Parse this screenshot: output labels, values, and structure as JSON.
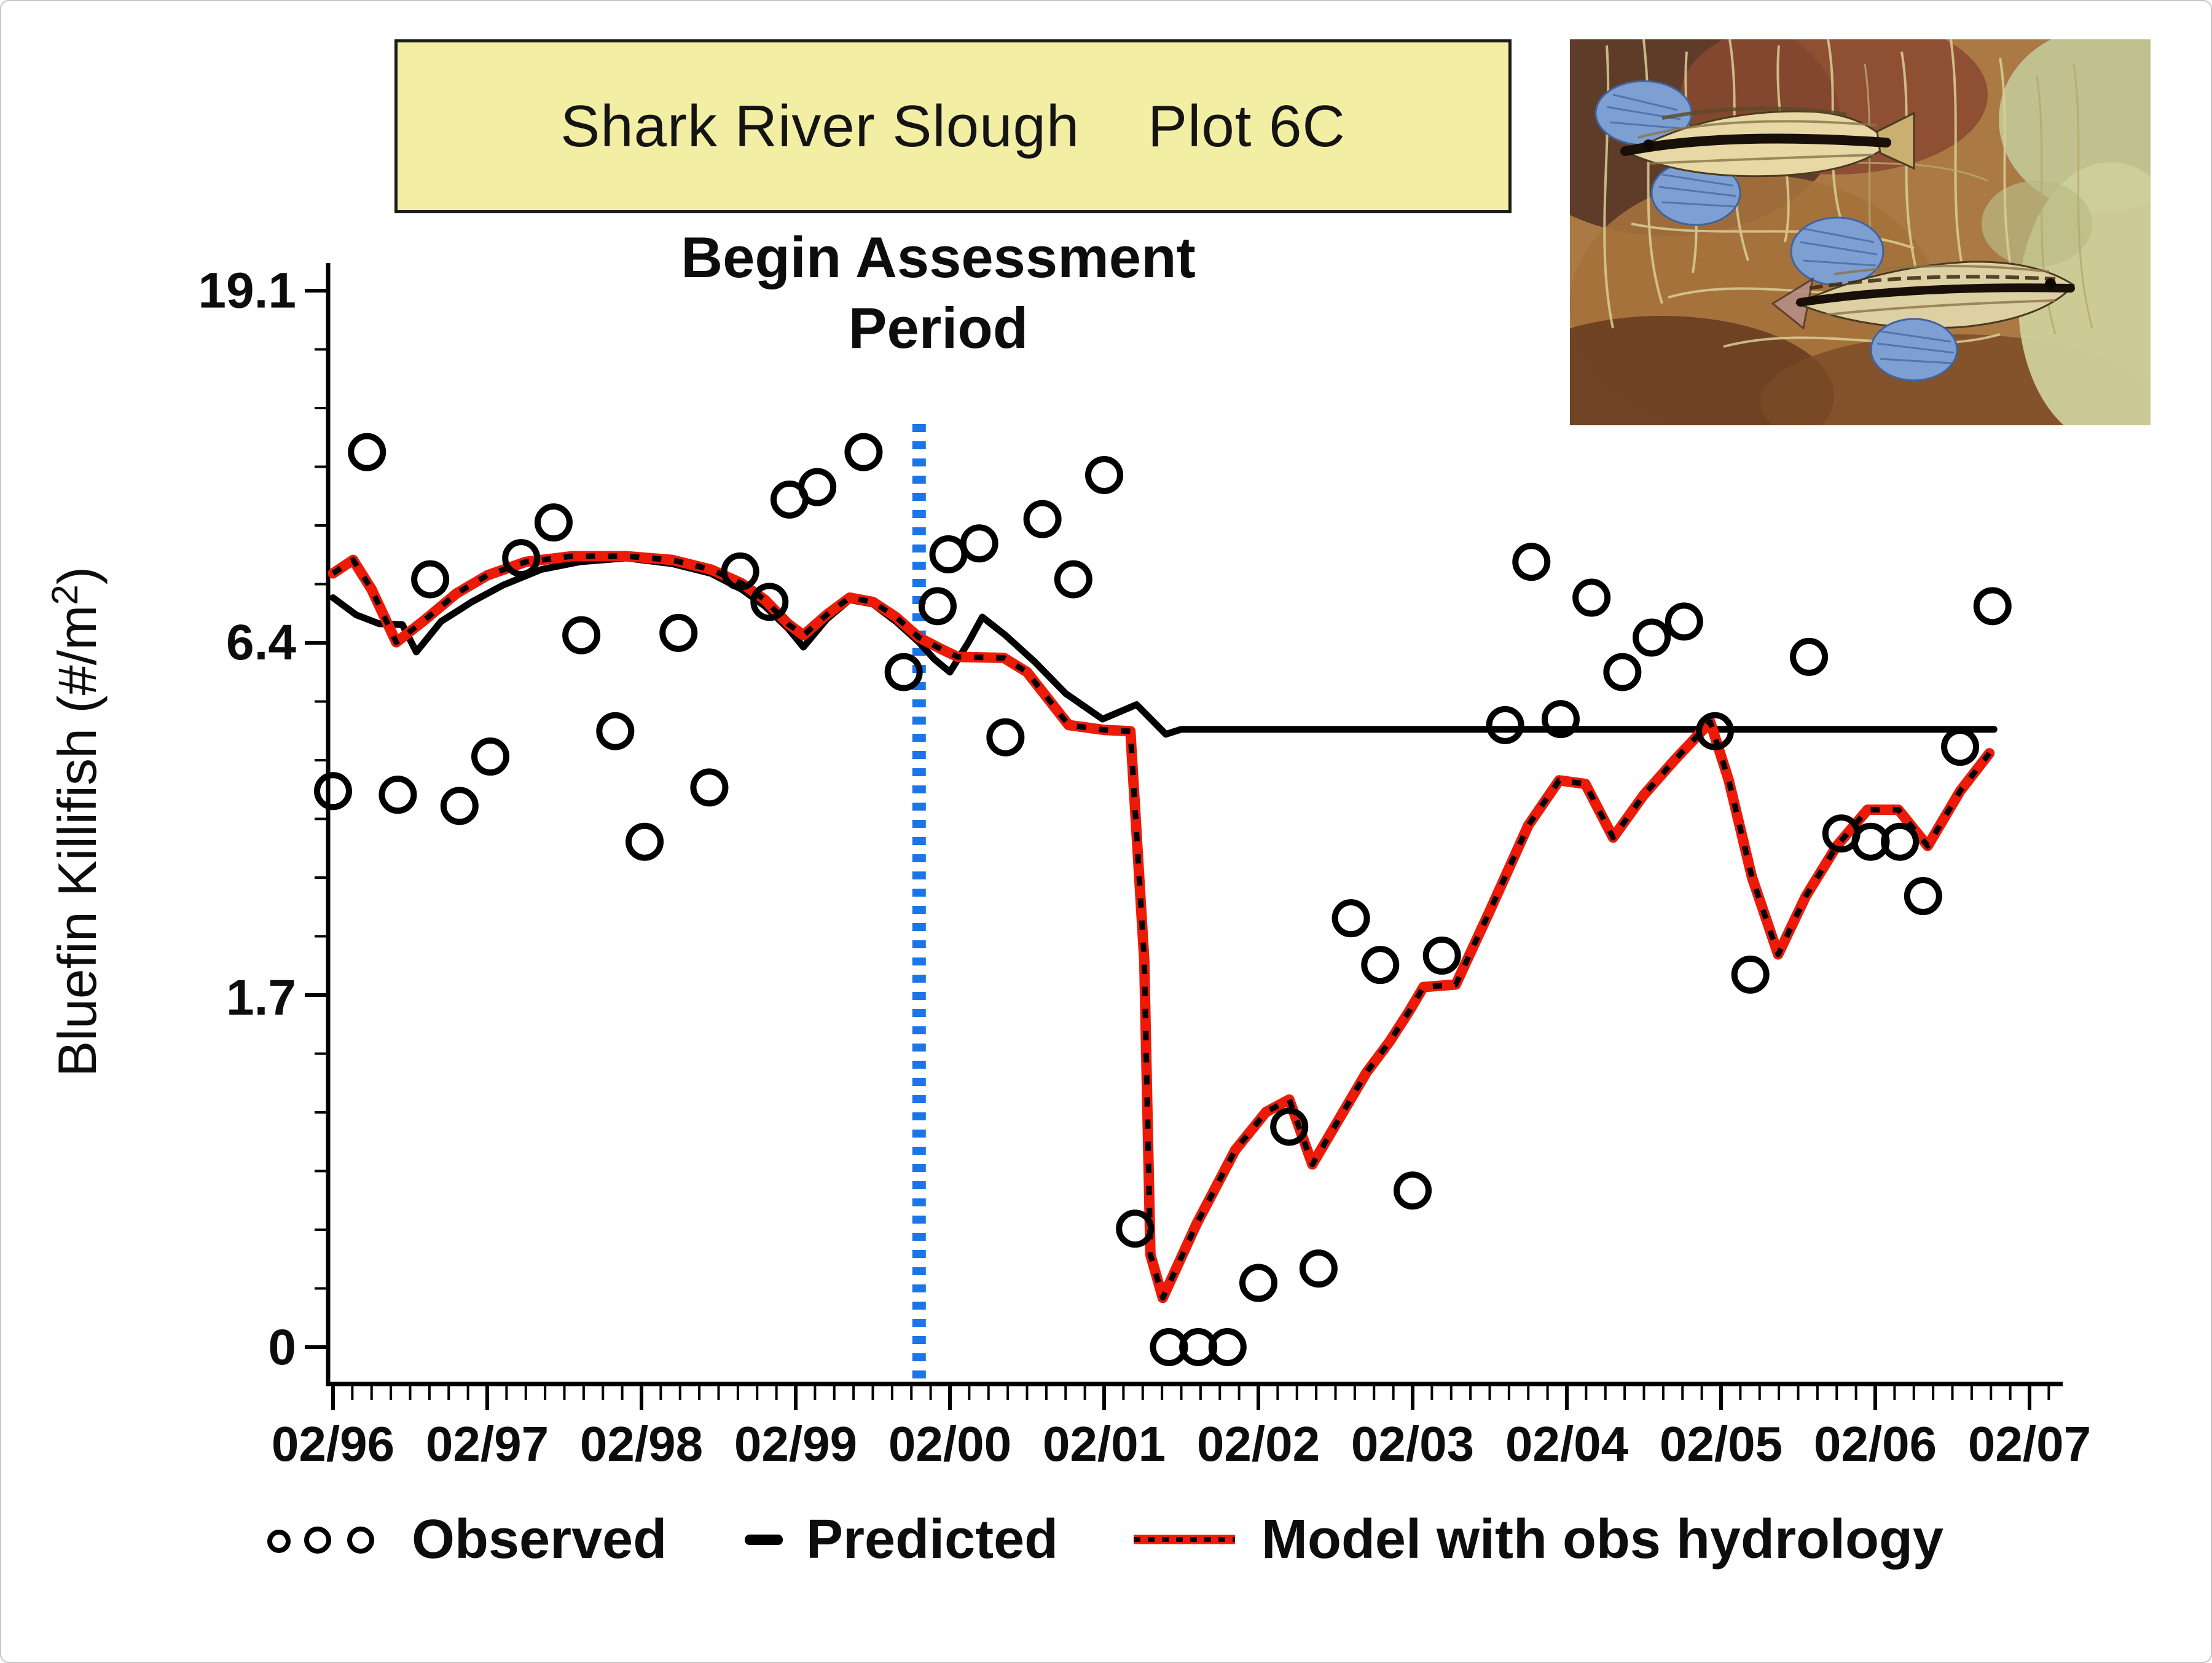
{
  "title": {
    "text": "Shark River Slough    Plot 6C"
  },
  "annotation": {
    "line1": "Begin Assessment",
    "line2": "Period"
  },
  "y_axis": {
    "label_prefix": "Bluefin Killifish (#/m",
    "label_sup": "2",
    "label_suffix": ")",
    "tick_labels": [
      "19.1",
      "6.4",
      "1.7",
      "0"
    ],
    "tick_values": [
      19.1,
      6.4,
      1.7,
      0
    ],
    "scale": "log(value+1)"
  },
  "x_axis": {
    "tick_labels": [
      "02/96",
      "02/97",
      "02/98",
      "02/99",
      "02/00",
      "02/01",
      "02/02",
      "02/03",
      "02/04",
      "02/05",
      "02/06",
      "02/07"
    ]
  },
  "legend": {
    "observed": "Observed",
    "predicted": "Predicted",
    "model": "Model with obs hydrology"
  },
  "colors": {
    "predicted": "#000000",
    "model_red": "#ee1a08",
    "observed_marker": "#000000",
    "assessment_blue": "#1b74e8",
    "title_bg": "#f2eea4"
  },
  "chart_data": {
    "type": "line+scatter",
    "title": "Shark River Slough  Plot 6C",
    "ylabel": "Bluefin Killifish (#/m2)",
    "y_scale": "ln(v+1), tick values at 0, 1.7, 6.4, 19.1",
    "ylim": [
      0,
      19.1
    ],
    "x_unit": "years since Feb 1996 (axis labeled 02/96 through 02/07)",
    "x_ticks": [
      "02/96",
      "02/97",
      "02/98",
      "02/99",
      "02/00",
      "02/01",
      "02/02",
      "02/03",
      "02/04",
      "02/05",
      "02/06",
      "02/07"
    ],
    "assessment_line_x": 3.8,
    "legend_position": "bottom",
    "grid": false,
    "series": [
      {
        "name": "Observed",
        "type": "scatter",
        "points": [
          [
            0.0,
            3.85
          ],
          [
            0.22,
            11.7
          ],
          [
            0.42,
            3.8
          ],
          [
            0.63,
            7.85
          ],
          [
            0.82,
            3.65
          ],
          [
            1.02,
            4.35
          ],
          [
            1.22,
            8.4
          ],
          [
            1.43,
            9.4
          ],
          [
            1.61,
            6.55
          ],
          [
            1.83,
            4.75
          ],
          [
            2.02,
            3.2
          ],
          [
            2.24,
            6.6
          ],
          [
            2.44,
            3.9
          ],
          [
            2.64,
            8.05
          ],
          [
            2.83,
            7.3
          ],
          [
            2.96,
            10.1
          ],
          [
            3.14,
            10.5
          ],
          [
            3.44,
            11.7
          ],
          [
            3.7,
            5.8
          ],
          [
            3.92,
            7.2
          ],
          [
            3.99,
            8.5
          ],
          [
            4.19,
            8.8
          ],
          [
            4.36,
            4.65
          ],
          [
            4.6,
            9.5
          ],
          [
            4.8,
            7.85
          ],
          [
            5.0,
            10.9
          ],
          [
            5.2,
            0.4
          ],
          [
            5.42,
            0
          ],
          [
            5.61,
            0
          ],
          [
            5.8,
            0
          ],
          [
            6.0,
            0.2
          ],
          [
            6.2,
            0.87
          ],
          [
            6.39,
            0.25
          ],
          [
            6.6,
            2.38
          ],
          [
            6.79,
            1.96
          ],
          [
            7.0,
            0.56
          ],
          [
            7.19,
            2.04
          ],
          [
            7.6,
            4.85
          ],
          [
            7.77,
            8.3
          ],
          [
            7.96,
            4.95
          ],
          [
            8.16,
            7.4
          ],
          [
            8.36,
            5.8
          ],
          [
            8.55,
            6.5
          ],
          [
            8.76,
            6.85
          ],
          [
            8.96,
            4.75
          ],
          [
            9.19,
            1.88
          ],
          [
            9.57,
            6.1
          ],
          [
            9.78,
            3.3
          ],
          [
            9.97,
            3.2
          ],
          [
            10.16,
            3.2
          ],
          [
            10.31,
            2.6
          ],
          [
            10.55,
            4.5
          ],
          [
            10.76,
            7.2
          ]
        ]
      },
      {
        "name": "Predicted",
        "type": "line",
        "color": "#000000",
        "points": [
          [
            0,
            7.4
          ],
          [
            0.15,
            7.0
          ],
          [
            0.3,
            6.8
          ],
          [
            0.45,
            6.78
          ],
          [
            0.54,
            6.2
          ],
          [
            0.7,
            6.85
          ],
          [
            0.9,
            7.3
          ],
          [
            1.1,
            7.7
          ],
          [
            1.35,
            8.1
          ],
          [
            1.6,
            8.3
          ],
          [
            1.9,
            8.4
          ],
          [
            2.2,
            8.25
          ],
          [
            2.45,
            8.0
          ],
          [
            2.65,
            7.6
          ],
          [
            2.8,
            7.2
          ],
          [
            2.95,
            6.7
          ],
          [
            3.05,
            6.3
          ],
          [
            3.2,
            6.9
          ],
          [
            3.35,
            7.35
          ],
          [
            3.5,
            7.25
          ],
          [
            3.65,
            6.85
          ],
          [
            3.8,
            6.4
          ],
          [
            3.9,
            6.05
          ],
          [
            4.0,
            5.8
          ],
          [
            4.12,
            6.4
          ],
          [
            4.21,
            6.95
          ],
          [
            4.36,
            6.55
          ],
          [
            4.55,
            6.0
          ],
          [
            4.75,
            5.4
          ],
          [
            4.99,
            4.95
          ],
          [
            5.21,
            5.2
          ],
          [
            5.4,
            4.7
          ],
          [
            5.5,
            4.78
          ],
          [
            10.77,
            4.78
          ]
        ]
      },
      {
        "name": "Model with obs hydrology",
        "type": "line",
        "color": "#ee1a08",
        "dashed_overlay": true,
        "points": [
          [
            0,
            8.0
          ],
          [
            0.13,
            8.35
          ],
          [
            0.25,
            7.6
          ],
          [
            0.41,
            6.4
          ],
          [
            0.6,
            6.9
          ],
          [
            0.8,
            7.5
          ],
          [
            1.0,
            7.95
          ],
          [
            1.25,
            8.3
          ],
          [
            1.55,
            8.45
          ],
          [
            1.9,
            8.45
          ],
          [
            2.2,
            8.35
          ],
          [
            2.45,
            8.1
          ],
          [
            2.65,
            7.75
          ],
          [
            2.8,
            7.35
          ],
          [
            2.95,
            6.8
          ],
          [
            3.05,
            6.55
          ],
          [
            3.2,
            7.0
          ],
          [
            3.35,
            7.4
          ],
          [
            3.5,
            7.3
          ],
          [
            3.65,
            6.95
          ],
          [
            3.8,
            6.5
          ],
          [
            3.95,
            6.25
          ],
          [
            4.05,
            6.1
          ],
          [
            4.35,
            6.08
          ],
          [
            4.5,
            5.8
          ],
          [
            4.77,
            4.85
          ],
          [
            5.0,
            4.77
          ],
          [
            5.17,
            4.75
          ],
          [
            5.26,
            2.0
          ],
          [
            5.3,
            0.3
          ],
          [
            5.38,
            0.15
          ],
          [
            5.6,
            0.42
          ],
          [
            5.85,
            0.75
          ],
          [
            6.05,
            0.95
          ],
          [
            6.2,
            1.02
          ],
          [
            6.35,
            0.68
          ],
          [
            6.55,
            0.95
          ],
          [
            6.7,
            1.18
          ],
          [
            6.85,
            1.38
          ],
          [
            6.98,
            1.6
          ],
          [
            7.07,
            1.78
          ],
          [
            7.28,
            1.8
          ],
          [
            7.5,
            2.45
          ],
          [
            7.75,
            3.4
          ],
          [
            7.95,
            4.0
          ],
          [
            8.12,
            3.95
          ],
          [
            8.3,
            3.25
          ],
          [
            8.5,
            3.8
          ],
          [
            8.7,
            4.3
          ],
          [
            8.93,
            4.9
          ],
          [
            9.05,
            4.0
          ],
          [
            9.2,
            2.8
          ],
          [
            9.37,
            2.05
          ],
          [
            9.55,
            2.6
          ],
          [
            9.75,
            3.15
          ],
          [
            9.95,
            3.6
          ],
          [
            10.15,
            3.6
          ],
          [
            10.34,
            3.15
          ],
          [
            10.55,
            3.85
          ],
          [
            10.74,
            4.4
          ]
        ]
      }
    ],
    "annotation": {
      "text": "Begin Assessment Period",
      "x": 3.8
    }
  }
}
